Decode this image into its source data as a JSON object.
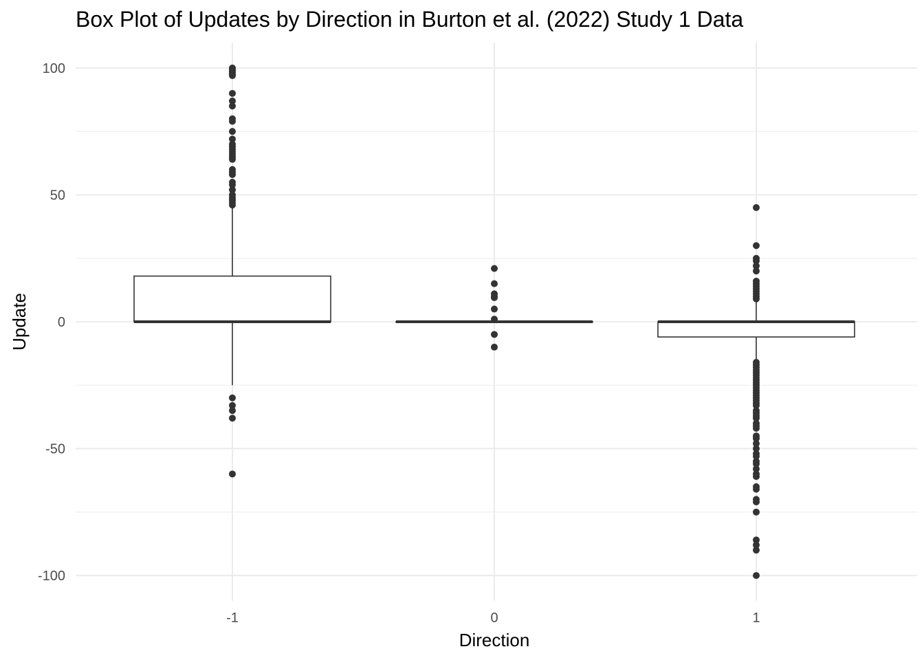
{
  "chart_data": {
    "type": "box",
    "title": "Box Plot of Updates by Direction in Burton et al. (2022) Study 1 Data",
    "xlabel": "Direction",
    "ylabel": "Update",
    "categories": [
      "-1",
      "0",
      "1"
    ],
    "y_ticks": [
      -100,
      -50,
      0,
      50,
      100
    ],
    "y_tick_labels": [
      "-100",
      "-50",
      "0",
      "50",
      "100"
    ],
    "ylim": [
      -110,
      110
    ],
    "grid": true,
    "colors": {
      "box_stroke": "#333333",
      "outlier": "#333333",
      "grid": "#ebebeb",
      "background": "#ffffff"
    },
    "boxes": [
      {
        "category": "-1",
        "q1": 0,
        "median": 0,
        "q3": 18,
        "whisker_low": -25,
        "whisker_high": 46,
        "outliers": [
          100,
          99.5,
          99,
          98.5,
          98,
          97.5,
          97,
          90,
          87,
          85,
          80,
          79,
          75,
          72,
          70,
          69,
          68,
          67,
          66,
          65,
          64,
          60,
          59,
          58,
          55,
          54,
          52,
          50,
          49,
          48,
          47,
          46,
          -30,
          -33,
          -35,
          -38,
          -60
        ]
      },
      {
        "category": "0",
        "q1": 0,
        "median": 0,
        "q3": 0,
        "whisker_low": 0,
        "whisker_high": 0,
        "outliers": [
          21,
          15,
          11,
          10,
          9.5,
          5,
          1,
          -5,
          -10
        ]
      },
      {
        "category": "1",
        "q1": -6,
        "median": 0,
        "q3": 0,
        "whisker_low": -15,
        "whisker_high": 8,
        "outliers": [
          45,
          30,
          25,
          24,
          22,
          20,
          16,
          15,
          14,
          13,
          12,
          11,
          10,
          9,
          -16,
          -17,
          -18,
          -19,
          -20,
          -21,
          -22,
          -23,
          -24,
          -25,
          -26,
          -27,
          -28,
          -29,
          -30,
          -31,
          -32,
          -33,
          -35,
          -36,
          -37,
          -38,
          -40,
          -41,
          -42,
          -45,
          -46,
          -48,
          -50,
          -52,
          -53,
          -55,
          -56,
          -58,
          -60,
          -61,
          -65,
          -66,
          -70,
          -71,
          -75,
          -86,
          -88,
          -90,
          -100
        ]
      }
    ]
  }
}
